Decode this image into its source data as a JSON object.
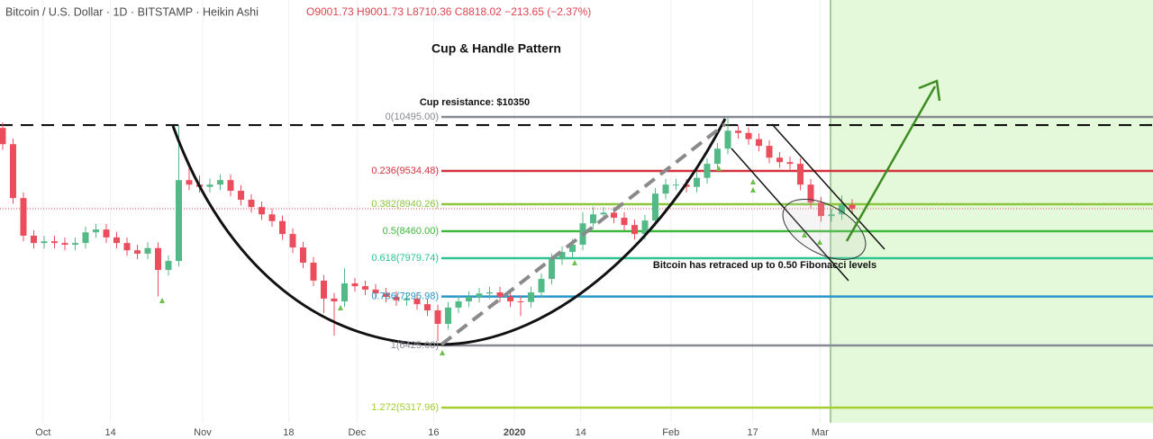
{
  "header": {
    "symbol": "Bitcoin / U.S. Dollar · 1D · BITSTAMP · Heikin Ashi",
    "ohlc": "O9001.73 H9001.73 L8710.36 C8818.02 −213.65 (−2.37%)"
  },
  "chart_data": {
    "type": "candlestick",
    "title": "Cup & Handle Pattern",
    "annotations": [
      "Cup resistance: $10350",
      "Bitcoin has retraced up to 0.50 Fibonacci levels"
    ],
    "resistance": 10350,
    "up_color": "#53b987",
    "down_color": "#eb4d5c",
    "open": [
      10300,
      10010,
      9050,
      8380,
      8250,
      8280,
      8250,
      8220,
      8250,
      8440,
      8490,
      8350,
      8250,
      8120,
      8060,
      8160,
      7770,
      7930,
      9370,
      9290,
      9250,
      9290,
      9370,
      9180,
      9020,
      8890,
      8760,
      8640,
      8410,
      8170,
      7900,
      7580,
      7260,
      7210,
      7530,
      7480,
      7420,
      7350,
      7290,
      7230,
      7260,
      7160,
      7050,
      6810,
      7100,
      7210,
      7290,
      7350,
      7370,
      7290,
      7210,
      7200,
      7370,
      7610,
      7960,
      8090,
      8220,
      8600,
      8760,
      8790,
      8700,
      8570,
      8410,
      8650,
      9130,
      9290,
      9290,
      9250,
      9410,
      9660,
      9930,
      10250,
      10210,
      10100,
      9980,
      9770,
      9690,
      9660,
      9290,
      8970,
      8730,
      8760,
      8930
    ],
    "high": [
      10400,
      10110,
      9150,
      8480,
      8380,
      8380,
      8350,
      8350,
      8540,
      8590,
      8590,
      8450,
      8350,
      8220,
      8260,
      8260,
      8030,
      10350,
      9650,
      9450,
      9400,
      9470,
      9470,
      9280,
      9120,
      8990,
      8860,
      8740,
      8510,
      8270,
      8000,
      7680,
      7360,
      7800,
      7630,
      7580,
      7520,
      7450,
      7390,
      7360,
      7360,
      7260,
      7150,
      7200,
      7310,
      7390,
      7450,
      7470,
      7470,
      7390,
      7310,
      7470,
      7710,
      8060,
      8190,
      8320,
      8800,
      8900,
      8890,
      8890,
      8800,
      8670,
      8750,
      9230,
      9390,
      9390,
      9390,
      9510,
      9760,
      10030,
      10500,
      10350,
      10310,
      10200,
      10080,
      9870,
      9790,
      9760,
      9390,
      9070,
      8860,
      9100,
      9030
    ],
    "low": [
      9910,
      8950,
      8280,
      8150,
      8150,
      8150,
      8120,
      8120,
      8150,
      8340,
      8250,
      8150,
      8020,
      7960,
      7960,
      7300,
      7670,
      7830,
      9190,
      9150,
      9150,
      9190,
      9080,
      8920,
      8790,
      8660,
      8540,
      8310,
      8070,
      7800,
      7480,
      7000,
      6600,
      7110,
      7380,
      7320,
      7250,
      7190,
      7130,
      7130,
      7060,
      6950,
      6500,
      6710,
      7000,
      7110,
      7190,
      7250,
      7190,
      7110,
      6950,
      7100,
      7270,
      7510,
      7860,
      7990,
      8120,
      8500,
      8660,
      8600,
      8470,
      8310,
      8310,
      8550,
      9030,
      9190,
      9150,
      9150,
      9310,
      9560,
      9830,
      10110,
      10000,
      9880,
      9670,
      9590,
      9560,
      9190,
      8870,
      8630,
      8630,
      8660,
      8760
    ],
    "close": [
      10010,
      9050,
      8380,
      8250,
      8280,
      8250,
      8220,
      8250,
      8440,
      8490,
      8350,
      8250,
      8120,
      8060,
      8160,
      7770,
      7930,
      9370,
      9290,
      9250,
      9290,
      9370,
      9180,
      9020,
      8890,
      8760,
      8640,
      8410,
      8170,
      7900,
      7580,
      7260,
      7210,
      7530,
      7480,
      7420,
      7350,
      7290,
      7230,
      7260,
      7160,
      7050,
      6810,
      7100,
      7210,
      7290,
      7350,
      7370,
      7290,
      7210,
      7200,
      7370,
      7610,
      7960,
      8090,
      8220,
      8600,
      8760,
      8790,
      8700,
      8570,
      8410,
      8650,
      9130,
      9290,
      9290,
      9250,
      9410,
      9660,
      9930,
      10250,
      10210,
      10100,
      9980,
      9770,
      9690,
      9660,
      9290,
      8970,
      8730,
      8760,
      8930,
      8860
    ],
    "xlim": [
      -0.26,
      111.04
    ],
    "ylim": [
      5047,
      12578
    ],
    "xticks": [
      {
        "value": 3.9,
        "label": "Oct"
      },
      {
        "value": 10.4,
        "label": "14"
      },
      {
        "value": 19.3,
        "label": "Nov"
      },
      {
        "value": 27.6,
        "label": "18"
      },
      {
        "value": 34.2,
        "label": "Dec"
      },
      {
        "value": 41.6,
        "label": "16"
      },
      {
        "value": 49.4,
        "label": "2020"
      },
      {
        "value": 55.8,
        "label": "14"
      },
      {
        "value": 64.5,
        "label": "Feb"
      },
      {
        "value": 72.4,
        "label": "17"
      },
      {
        "value": 78.9,
        "label": "Mar"
      }
    ],
    "fib_levels": [
      {
        "label": "0(10495.00)",
        "value": 10495.0,
        "color": "#868993"
      },
      {
        "label": "0.236(9534.48)",
        "value": 9534.48,
        "color": "#d3323f"
      },
      {
        "label": "0.382(8940.26)",
        "value": 8940.26,
        "color": "#8cc63f"
      },
      {
        "label": "0.5(8460.00)",
        "value": 8460.0,
        "color": "#3dba3a"
      },
      {
        "label": "0.618(7979.74)",
        "value": 7979.74,
        "color": "#2cc58f"
      },
      {
        "label": "0.786(7295.98)",
        "value": 7295.98,
        "color": "#2a95c9"
      },
      {
        "label": "1(6425.00)",
        "value": 6425.0,
        "color": "#868993"
      },
      {
        "label": "1.272(5317.96)",
        "value": 5317.96,
        "color": "#a4cf2e"
      }
    ]
  }
}
